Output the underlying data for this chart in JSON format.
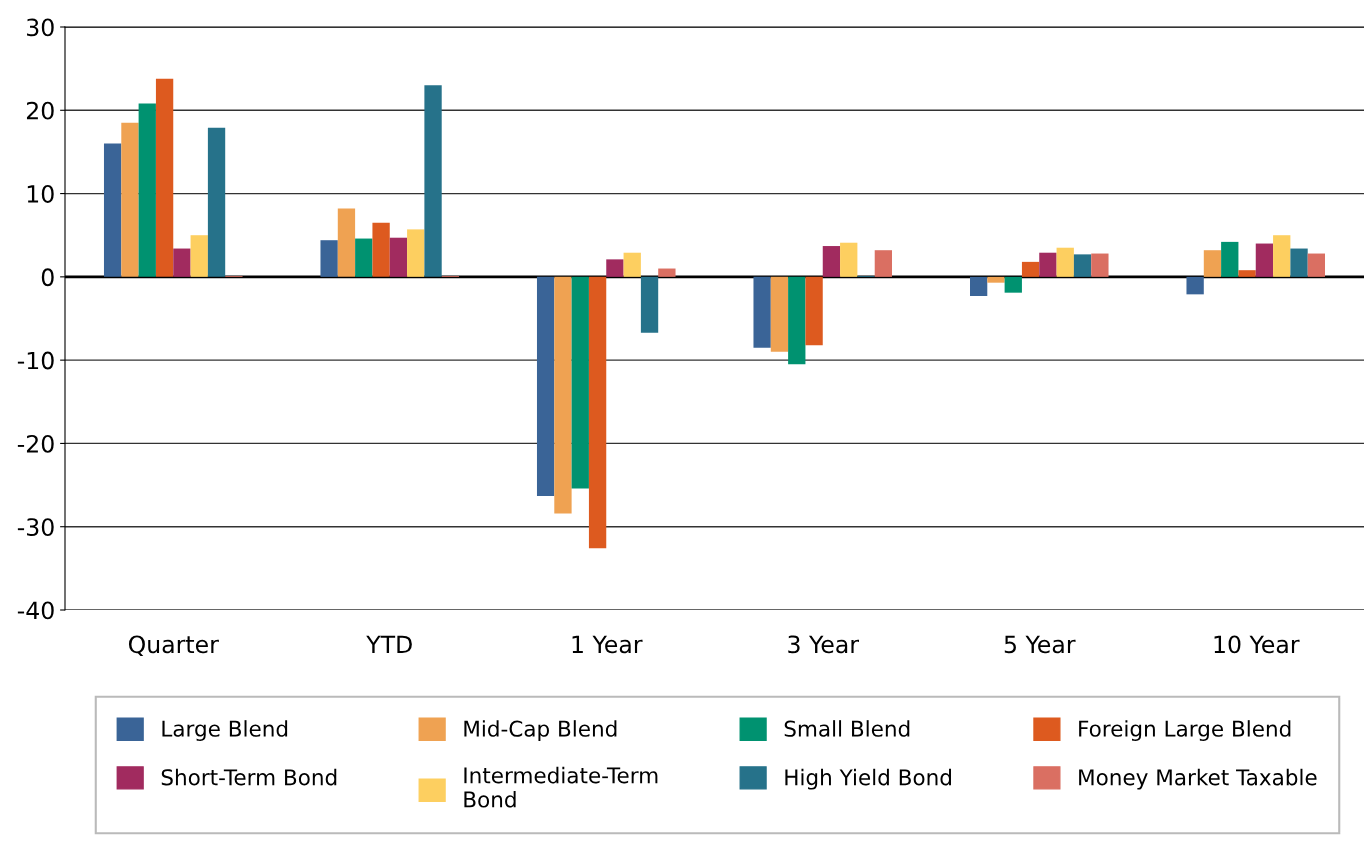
{
  "chart_data": {
    "type": "bar",
    "categories": [
      "Quarter",
      "YTD",
      "1 Year",
      "3 Year",
      "5 Year",
      "10 Year"
    ],
    "series": [
      {
        "name": "Large Blend",
        "color": "#3a6497",
        "values": [
          16.0,
          4.4,
          -26.3,
          -8.5,
          -2.3,
          -2.1
        ]
      },
      {
        "name": "Mid-Cap Blend",
        "color": "#efa252",
        "values": [
          18.5,
          8.2,
          -28.4,
          -9.0,
          -0.7,
          3.2
        ]
      },
      {
        "name": "Small Blend",
        "color": "#009270",
        "values": [
          20.8,
          4.6,
          -25.4,
          -10.5,
          -1.9,
          4.2
        ]
      },
      {
        "name": "Foreign Large Blend",
        "color": "#dd5a1f",
        "values": [
          23.8,
          6.5,
          -32.6,
          -8.2,
          1.8,
          0.8
        ]
      },
      {
        "name": "Short-Term Bond",
        "color": "#a12b5f",
        "values": [
          3.4,
          4.7,
          2.1,
          3.7,
          2.9,
          4.0
        ]
      },
      {
        "name": "Intermediate-Term\nBond",
        "color": "#fdcf60",
        "values": [
          5.0,
          5.7,
          2.9,
          4.1,
          3.5,
          5.0
        ]
      },
      {
        "name": "High Yield Bond",
        "color": "#26728a",
        "values": [
          17.9,
          23.0,
          -6.7,
          0.1,
          2.7,
          3.4
        ]
      },
      {
        "name": "Money Market Taxable",
        "color": "#da6f62",
        "values": [
          0.1,
          0.1,
          1.0,
          3.2,
          2.8,
          2.8
        ]
      }
    ],
    "ylim": [
      -40,
      30
    ],
    "yticks": [
      -40,
      -30,
      -20,
      -10,
      0,
      10,
      20,
      30
    ],
    "grid": "y",
    "legend": "bottom"
  }
}
